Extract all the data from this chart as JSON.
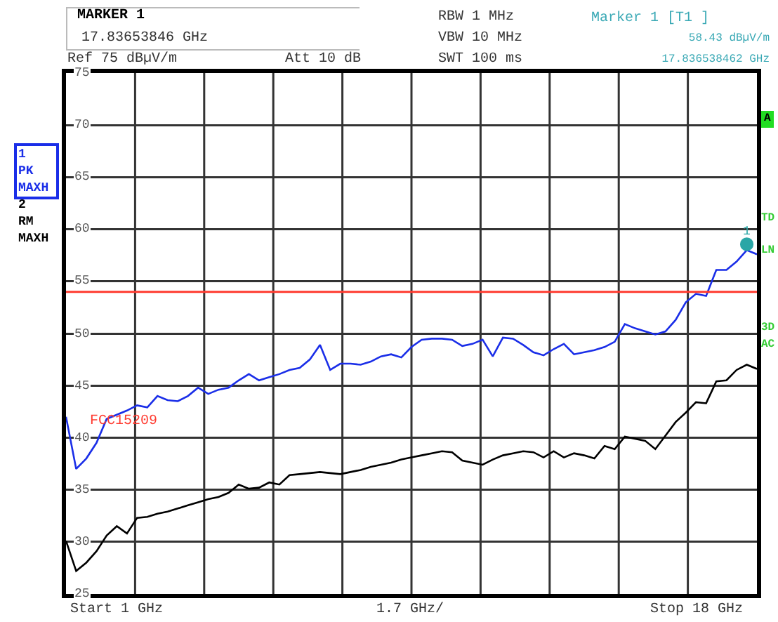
{
  "chart_data": {
    "type": "line",
    "annotations": [
      "MARKER 1",
      "17.83653846 GHz",
      "Ref 75 dBµV/m",
      "Att 10 dB",
      "RBW 1 MHz",
      "VBW 10 MHz",
      "SWT 100 ms",
      "Marker 1 [T1 ]",
      "58.43 dBµV/m",
      "17.836538462 GHz",
      "A",
      "TD",
      "LN",
      "3D",
      "AC",
      "Start 1 GHz",
      "1.7 GHz/",
      "Stop 18 GHz",
      {
        "text": "1",
        "y": 58.43
      }
    ],
    "categories": [
      null,
      null,
      null,
      null,
      null,
      null,
      null,
      null,
      null,
      null,
      null,
      null,
      null,
      null,
      null,
      null,
      null,
      null,
      null,
      null,
      null,
      null,
      null,
      null,
      null,
      null,
      null,
      null,
      null,
      null,
      null,
      null,
      null,
      null,
      null,
      null,
      null,
      null,
      null,
      null,
      null,
      null,
      null,
      null,
      null,
      null,
      null,
      null,
      null,
      null,
      null,
      null,
      null,
      null,
      null,
      null,
      null,
      null,
      null,
      null,
      null,
      null,
      null,
      null,
      null,
      null,
      null,
      null,
      null
    ],
    "series": [
      {
        "name": "1 PK MAXH",
        "color": "#1a2ee8",
        "values": [
          42.0,
          37.0,
          38.0,
          39.5,
          41.8,
          42.2,
          42.6,
          43.1,
          42.9,
          44.0,
          43.6,
          43.5,
          44.0,
          44.8,
          44.2,
          44.6,
          44.8,
          45.5,
          46.1,
          45.5,
          45.8,
          46.1,
          46.5,
          46.7,
          47.5,
          48.9,
          46.5,
          47.1,
          47.1,
          47.0,
          47.3,
          47.8,
          48.0,
          47.7,
          48.7,
          49.4,
          49.5,
          49.5,
          49.4,
          48.8,
          49.0,
          49.4,
          47.8,
          49.6,
          49.5,
          48.9,
          48.2,
          47.9,
          48.5,
          49.0,
          48.0,
          48.2,
          48.4,
          48.7,
          49.2,
          50.9,
          50.5,
          50.2,
          49.9,
          50.2,
          51.3,
          53.0,
          53.8,
          53.6,
          56.1,
          56.1,
          56.9,
          58.0,
          57.6
        ]
      },
      {
        "name": "2 RM MAXH",
        "color": "#000000",
        "values": [
          30.1,
          27.2,
          28.0,
          29.1,
          30.6,
          31.5,
          30.8,
          32.3,
          32.4,
          32.7,
          32.9,
          33.2,
          33.5,
          33.8,
          34.1,
          34.3,
          34.7,
          35.5,
          35.1,
          35.2,
          35.7,
          35.5,
          36.4,
          36.5,
          36.6,
          36.7,
          36.6,
          36.5,
          36.7,
          36.9,
          37.2,
          37.4,
          37.6,
          37.9,
          38.1,
          38.3,
          38.5,
          38.7,
          38.6,
          37.8,
          37.6,
          37.4,
          37.9,
          38.3,
          38.5,
          38.7,
          38.6,
          38.1,
          38.7,
          38.1,
          38.5,
          38.3,
          38.0,
          39.2,
          38.9,
          40.1,
          39.9,
          39.7,
          38.9,
          40.2,
          41.5,
          42.4,
          43.4,
          43.3,
          45.4,
          45.5,
          46.5,
          47.0,
          46.6
        ]
      }
    ],
    "ylim": [
      25,
      75
    ],
    "yticks": [
      25,
      30,
      35,
      40,
      45,
      50,
      55,
      60,
      65,
      70,
      75
    ],
    "ref_lines": [
      {
        "axis": "y",
        "value": 54,
        "label": "FCC15209",
        "color": "#ff3b30"
      }
    ],
    "grid": true,
    "legend": "left",
    "marker": "none",
    "line_style": "solid"
  }
}
